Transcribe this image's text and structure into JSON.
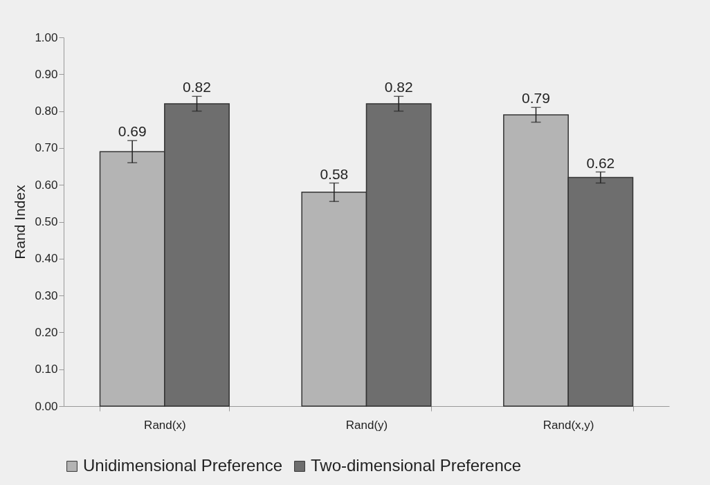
{
  "chart_data": {
    "type": "bar",
    "ylabel": "Rand Index",
    "categories": [
      "Rand(x)",
      "Rand(y)",
      "Rand(x,y)"
    ],
    "series": [
      {
        "name": "Unidimensional Preference",
        "color": "#b4b4b4",
        "values": [
          0.69,
          0.58,
          0.79
        ],
        "errors": [
          0.03,
          0.025,
          0.02
        ]
      },
      {
        "name": "Two-dimensional Preference",
        "color": "#6e6e6e",
        "values": [
          0.82,
          0.82,
          0.62
        ],
        "errors": [
          0.02,
          0.02,
          0.015
        ]
      }
    ],
    "ylim": [
      0,
      1
    ],
    "yticks": [
      {
        "value": 0,
        "label": "0.00"
      },
      {
        "value": 0.1,
        "label": "0.10"
      },
      {
        "value": 0.2,
        "label": "0.20"
      },
      {
        "value": 0.3,
        "label": "0.30"
      },
      {
        "value": 0.4,
        "label": "0.40"
      },
      {
        "value": 0.5,
        "label": "0.50"
      },
      {
        "value": 0.6,
        "label": "0.60"
      },
      {
        "value": 0.7,
        "label": "0.70"
      },
      {
        "value": 0.8,
        "label": "0.80"
      },
      {
        "value": 0.9,
        "label": "0.90"
      },
      {
        "value": 1,
        "label": "1.00"
      }
    ],
    "data_labels": true,
    "legend": "bottom",
    "grid": false
  }
}
